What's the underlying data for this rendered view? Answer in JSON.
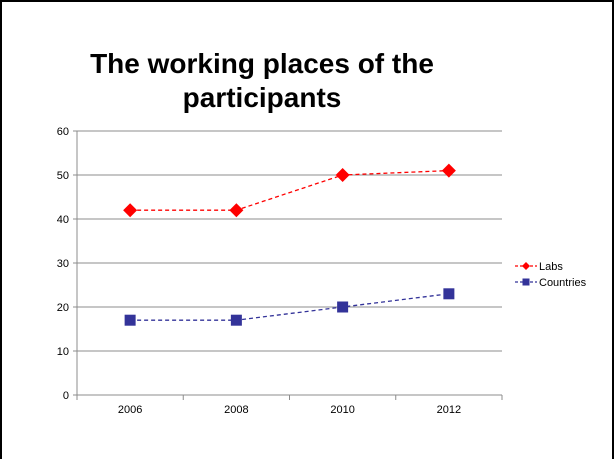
{
  "chart_data": {
    "type": "line",
    "title": "The working places of the participants",
    "categories": [
      "2006",
      "2008",
      "2010",
      "2012"
    ],
    "ylim": [
      0,
      60
    ],
    "yticks": [
      "0",
      "10",
      "20",
      "30",
      "40",
      "50",
      "60"
    ],
    "grid": true,
    "legend_position": "right",
    "series": [
      {
        "name": "Labs",
        "values": [
          42,
          42,
          50,
          51
        ],
        "color": "#ff0000",
        "marker": "diamond"
      },
      {
        "name": "Countries",
        "values": [
          17,
          17,
          20,
          23
        ],
        "color": "#333399",
        "marker": "square"
      }
    ]
  }
}
